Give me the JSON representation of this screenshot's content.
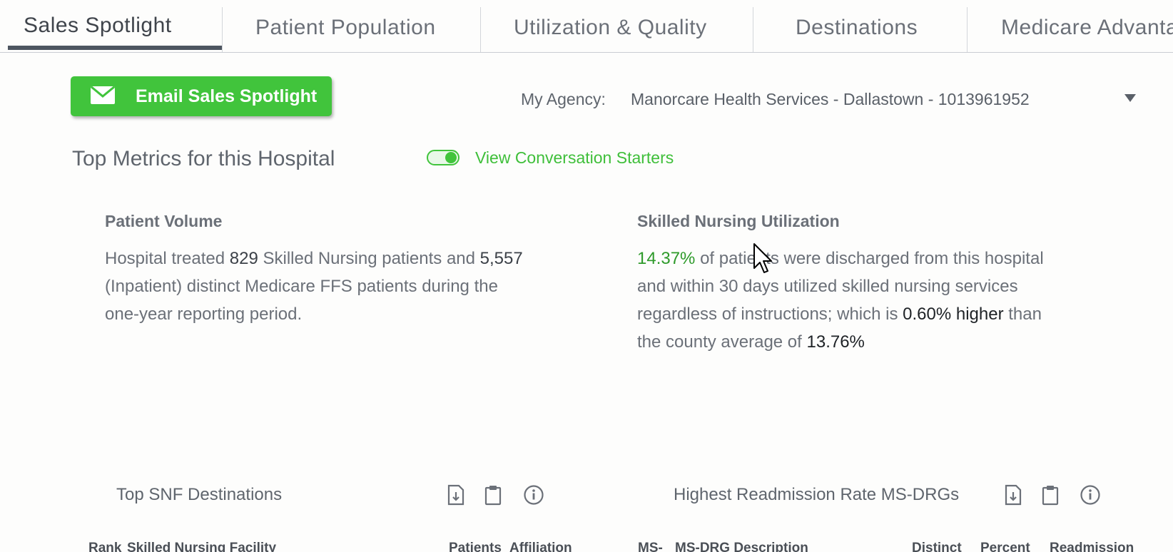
{
  "tabs": [
    {
      "label": "Sales Spotlight",
      "active": true
    },
    {
      "label": "Patient Population",
      "active": false
    },
    {
      "label": "Utilization & Quality",
      "active": false
    },
    {
      "label": "Destinations",
      "active": false
    },
    {
      "label": "Medicare Advantage",
      "active": false
    }
  ],
  "toolbar": {
    "email_button_label": "Email Sales Spotlight",
    "email_icon": "envelope-icon",
    "agency_label": "My Agency:",
    "agency_value": "Manorcare Health Services - Dallastown - 1013961952"
  },
  "metrics": {
    "section_title": "Top Metrics for this Hospital",
    "toggle_label": "View Conversation Starters",
    "toggle_on": true,
    "patient_volume": {
      "title": "Patient Volume",
      "line1_a": "Hospital treated ",
      "snf_patients": "829",
      "line1_b": " Skilled Nursing patients and ",
      "ffs_patients": "5,557",
      "line2": "(Inpatient) distinct Medicare FFS patients during the",
      "line3": "one-year reporting period."
    },
    "snf_utilization": {
      "title": "Skilled Nursing Utilization",
      "rate": "14.37%",
      "line1": " of patients were discharged from this hospital",
      "line2": "and within 30 days utilized skilled nursing services",
      "line3_a": "regardless of instructions; which is ",
      "diff": "0.60% higher",
      "line3_b": " than",
      "line4_a": "the county average of ",
      "county_avg": "13.76%"
    }
  },
  "snf_destinations": {
    "title": "Top SNF Destinations",
    "columns": [
      "Rank",
      "Skilled Nursing Facility",
      "Patients",
      "Affiliation"
    ]
  },
  "readmission": {
    "title": "Highest Readmission Rate MS-DRGs",
    "columns": [
      "MS-",
      "MS-DRG Description",
      "Distinct",
      "Percent",
      "Readmission"
    ]
  },
  "icons": {
    "download": "download-icon",
    "clipboard": "clipboard-icon",
    "info": "info-icon"
  },
  "colors": {
    "accent_green": "#41c43c",
    "metric_green": "#2e9a2a",
    "tab_underline": "#4d5560"
  }
}
